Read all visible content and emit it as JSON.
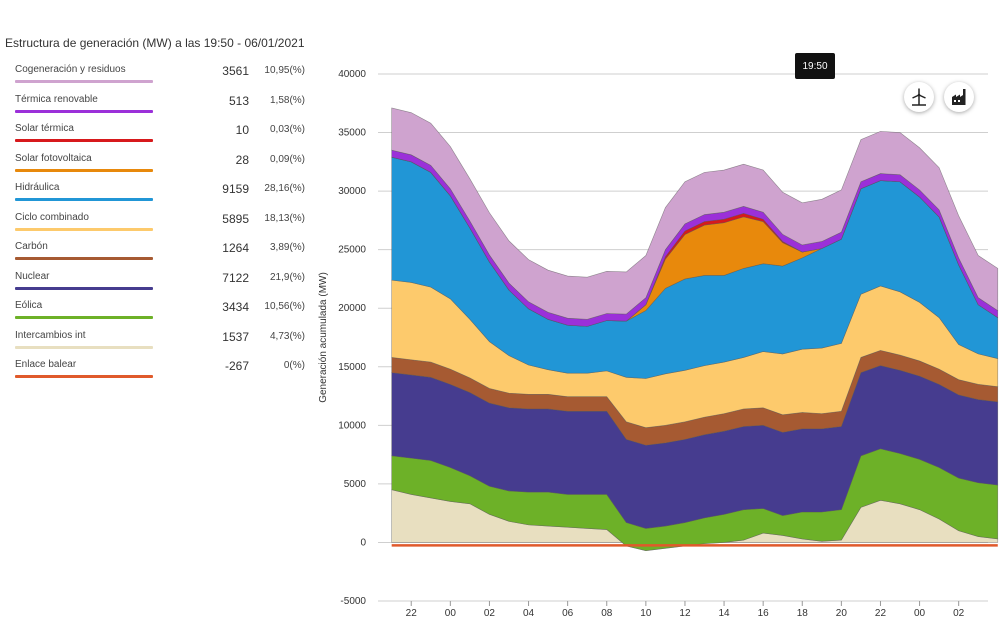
{
  "header": {
    "title": "Estructura de generación (MW) a las 19:50 - 06/01/2021"
  },
  "tooltip": {
    "time": "19:50"
  },
  "icons": {
    "wind": "wind-turbine-icon",
    "factory": "factory-icon"
  },
  "legend": [
    {
      "name": "Cogeneración y residuos",
      "value": "3561",
      "pct": "10,95(%)",
      "color": "#cfa3cf"
    },
    {
      "name": "Térmica renovable",
      "value": "513",
      "pct": "1,58(%)",
      "color": "#9b30d9"
    },
    {
      "name": "Solar térmica",
      "value": "10",
      "pct": "0,03(%)",
      "color": "#d7191c"
    },
    {
      "name": "Solar fotovoltaica",
      "value": "28",
      "pct": "0,09(%)",
      "color": "#e8890c"
    },
    {
      "name": "Hidráulica",
      "value": "9159",
      "pct": "28,16(%)",
      "color": "#2196d6"
    },
    {
      "name": "Ciclo combinado",
      "value": "5895",
      "pct": "18,13(%)",
      "color": "#fdca6c"
    },
    {
      "name": "Carbón",
      "value": "1264",
      "pct": "3,89(%)",
      "color": "#a65a32"
    },
    {
      "name": "Nuclear",
      "value": "7122",
      "pct": "21,9(%)",
      "color": "#463c8f"
    },
    {
      "name": "Eólica",
      "value": "3434",
      "pct": "10,56(%)",
      "color": "#6db128"
    },
    {
      "name": "Intercambios int",
      "value": "1537",
      "pct": "4,73(%)",
      "color": "#e8dfc0"
    },
    {
      "name": "Enlace balear",
      "value": "-267",
      "pct": "0(%)",
      "color": "#e05a2b"
    }
  ],
  "chart_data": {
    "type": "area",
    "stacked": true,
    "ylabel": "Generación acumulada (MW)",
    "ylim": [
      -5000,
      40000
    ],
    "yticks": [
      -5000,
      0,
      5000,
      10000,
      15000,
      20000,
      25000,
      30000,
      35000,
      40000
    ],
    "grid": true,
    "x_hours": [
      21,
      22,
      23,
      24,
      25,
      26,
      27,
      28,
      29,
      30,
      31,
      32,
      33,
      34,
      35,
      36,
      37,
      38,
      39,
      40,
      41,
      42,
      43,
      44,
      45,
      46,
      47,
      48,
      49,
      50,
      51,
      52
    ],
    "xtick_labels": [
      "22",
      "00",
      "02",
      "04",
      "06",
      "08",
      "10",
      "12",
      "14",
      "16",
      "18",
      "20",
      "22",
      "00",
      "02"
    ],
    "series": [
      {
        "name": "Intercambios int",
        "color": "#e8dfc0",
        "values": [
          4500,
          4100,
          3800,
          3500,
          3300,
          2400,
          1800,
          1500,
          1400,
          1300,
          1200,
          1100,
          -300,
          -700,
          -500,
          -300,
          -100,
          0,
          200,
          800,
          600,
          300,
          100,
          200,
          3000,
          3600,
          3300,
          2800,
          2000,
          1000,
          500,
          300
        ]
      },
      {
        "name": "Eólica",
        "color": "#6db128",
        "values": [
          2900,
          3100,
          3200,
          2900,
          2400,
          2400,
          2600,
          2800,
          2900,
          2800,
          2900,
          3000,
          2000,
          1900,
          1900,
          2000,
          2200,
          2400,
          2600,
          2100,
          1700,
          2300,
          2500,
          2600,
          4400,
          4400,
          4300,
          4300,
          4400,
          4500,
          4600,
          4600
        ]
      },
      {
        "name": "Nuclear",
        "color": "#463c8f",
        "values": [
          7100,
          7100,
          7100,
          7100,
          7100,
          7100,
          7100,
          7100,
          7100,
          7100,
          7100,
          7100,
          7100,
          7100,
          7100,
          7100,
          7100,
          7100,
          7100,
          7100,
          7100,
          7100,
          7100,
          7100,
          7100,
          7100,
          7100,
          7100,
          7100,
          7100,
          7100,
          7100
        ]
      },
      {
        "name": "Carbón",
        "color": "#a65a32",
        "values": [
          1300,
          1300,
          1300,
          1300,
          1250,
          1250,
          1250,
          1250,
          1250,
          1250,
          1250,
          1250,
          1500,
          1500,
          1500,
          1500,
          1500,
          1500,
          1500,
          1500,
          1500,
          1400,
          1300,
          1300,
          1300,
          1300,
          1300,
          1300,
          1300,
          1300,
          1300,
          1300
        ]
      },
      {
        "name": "Ciclo combinado",
        "color": "#fdca6c",
        "values": [
          6600,
          6600,
          6400,
          6000,
          5000,
          4000,
          3200,
          2500,
          2100,
          2000,
          2000,
          2200,
          3800,
          4200,
          4400,
          4400,
          4400,
          4400,
          4400,
          4800,
          5200,
          5400,
          5600,
          5800,
          5400,
          5500,
          5400,
          5000,
          4400,
          3000,
          2600,
          2400
        ]
      },
      {
        "name": "Hidráulica",
        "color": "#2196d6",
        "values": [
          10500,
          10300,
          9800,
          8800,
          7800,
          6800,
          5600,
          4800,
          4300,
          4100,
          4000,
          4300,
          4800,
          5800,
          7300,
          7800,
          7700,
          7400,
          7600,
          7500,
          7500,
          7800,
          8500,
          8900,
          9000,
          9000,
          9400,
          9000,
          8600,
          6800,
          4200,
          3500
        ]
      },
      {
        "name": "Solar fotovoltaica",
        "color": "#e8890c",
        "values": [
          0,
          0,
          0,
          0,
          0,
          0,
          0,
          0,
          0,
          0,
          0,
          0,
          0,
          500,
          2500,
          3800,
          4300,
          4500,
          4400,
          3600,
          2000,
          500,
          0,
          0,
          0,
          0,
          0,
          0,
          0,
          0,
          0,
          0
        ]
      },
      {
        "name": "Solar térmica",
        "color": "#d7191c",
        "values": [
          0,
          0,
          0,
          0,
          0,
          0,
          0,
          0,
          0,
          0,
          0,
          0,
          0,
          0,
          200,
          300,
          300,
          300,
          300,
          200,
          100,
          0,
          0,
          0,
          0,
          0,
          0,
          0,
          0,
          0,
          0,
          0
        ]
      },
      {
        "name": "Térmica renovable",
        "color": "#9b30d9",
        "values": [
          600,
          600,
          600,
          600,
          600,
          600,
          600,
          600,
          600,
          600,
          600,
          600,
          600,
          600,
          600,
          600,
          600,
          600,
          600,
          600,
          600,
          600,
          600,
          600,
          600,
          600,
          600,
          600,
          600,
          600,
          600,
          600
        ]
      },
      {
        "name": "Cogeneración y residuos",
        "color": "#cfa3cf",
        "values": [
          3600,
          3600,
          3600,
          3600,
          3600,
          3600,
          3600,
          3600,
          3600,
          3600,
          3600,
          3600,
          3600,
          3600,
          3600,
          3600,
          3600,
          3600,
          3600,
          3600,
          3600,
          3600,
          3600,
          3600,
          3600,
          3600,
          3600,
          3600,
          3600,
          3600,
          3600,
          3600
        ]
      },
      {
        "name": "Enlace balear",
        "color": "#e05a2b",
        "values": [
          -250,
          -250,
          -250,
          -250,
          -250,
          -250,
          -250,
          -250,
          -250,
          -250,
          -250,
          -250,
          -250,
          -250,
          -250,
          -250,
          -250,
          -250,
          -250,
          -250,
          -250,
          -250,
          -250,
          -250,
          -250,
          -250,
          -250,
          -250,
          -250,
          -250,
          -250,
          -250
        ]
      }
    ]
  }
}
